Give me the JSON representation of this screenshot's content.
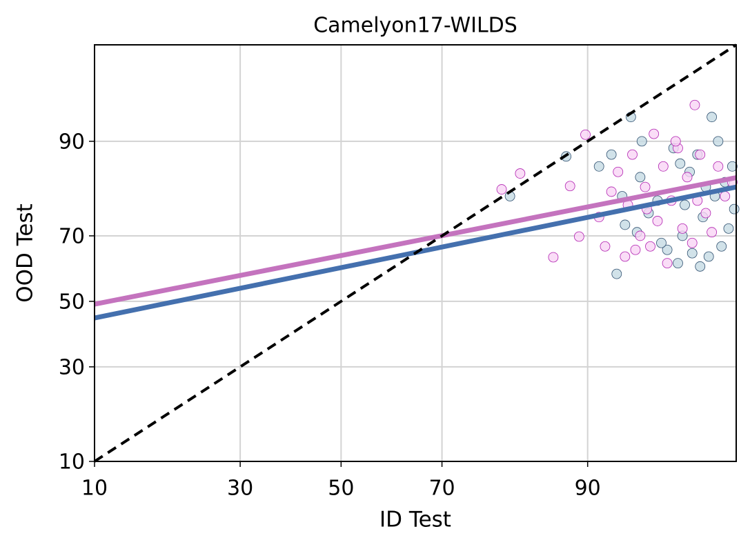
{
  "chart_data": {
    "type": "scatter",
    "title": "Camelyon17-WILDS",
    "xlabel": "ID Test",
    "ylabel": "OOD Test",
    "scale": "probit",
    "grid": true,
    "xlim": [
      10,
      98
    ],
    "ylim": [
      10,
      98
    ],
    "xticks": [
      10,
      30,
      50,
      70,
      90
    ],
    "yticks": [
      10,
      30,
      50,
      70,
      90
    ],
    "series": [
      {
        "color": "#c6dbe3",
        "edgecolor": "#2f4f6f",
        "x": [
          81,
          87.9,
          93.4,
          92.4,
          91,
          92,
          93,
          94,
          94.5,
          95,
          95.5,
          96,
          96.2,
          96.5,
          96.8,
          97,
          97.2,
          97.4,
          97.5,
          97.6,
          97.7,
          97.8,
          97.9,
          97.3,
          96.9,
          96.3,
          95.8,
          95.2,
          94.1,
          93.8,
          92.8,
          96.6,
          97.1,
          97.95,
          96.1
        ],
        "y": [
          80,
          87.7,
          93,
          58.7,
          86,
          88,
          73,
          84,
          76,
          79,
          66,
          62,
          70,
          85,
          88,
          75,
          64,
          80,
          90,
          67,
          83,
          72,
          86,
          93,
          61,
          78,
          89,
          68,
          90,
          71,
          80,
          65,
          82,
          77,
          86.5
        ]
      },
      {
        "color": "#f9d4f5",
        "edgecolor": "#b020b0",
        "x": [
          79.8,
          82.4,
          88.3,
          86.5,
          89.8,
          89.2,
          96.7,
          91,
          91.5,
          92,
          92.5,
          93,
          93.2,
          93.5,
          94,
          94.3,
          94.6,
          94.8,
          95,
          95.3,
          95.5,
          95.7,
          96,
          96.2,
          96.4,
          96.6,
          96.9,
          97.1,
          97.3,
          97.5,
          97.7,
          97.9,
          95.9,
          94.4,
          93.7,
          96.8
        ],
        "y": [
          81.5,
          84.7,
          82.2,
          63.8,
          90.9,
          69.8,
          94.2,
          75,
          67,
          81,
          85,
          64,
          78,
          88,
          70,
          82,
          67,
          91,
          74,
          86,
          62,
          79,
          89,
          72,
          84,
          68,
          88,
          76,
          71,
          86,
          80,
          83,
          90,
          77,
          66,
          79
        ]
      }
    ],
    "lines": [
      {
        "color": "#4470ae",
        "x": [
          10,
          98
        ],
        "y": [
          44.7,
          82
        ]
      },
      {
        "color": "#c473be",
        "x": [
          10,
          98
        ],
        "y": [
          49.1,
          83.9
        ]
      },
      {
        "color": "#000000",
        "dash": true,
        "x": [
          10,
          98
        ],
        "y": [
          10,
          98
        ]
      }
    ]
  }
}
